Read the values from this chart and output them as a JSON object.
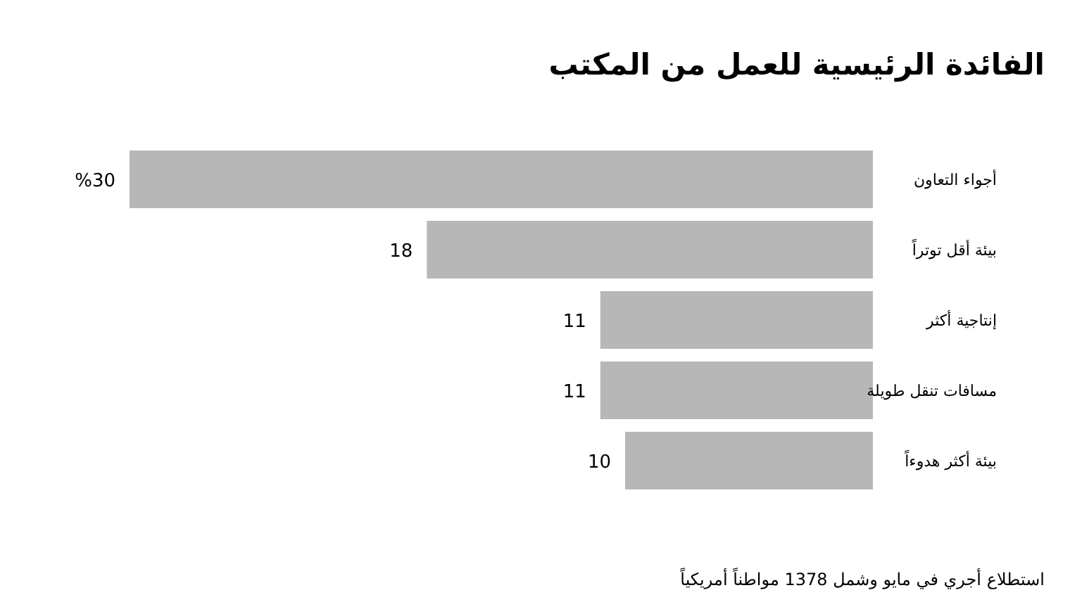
{
  "chart_data": {
    "type": "bar",
    "orientation": "horizontal",
    "title": "الفائدة الرئيسية للعمل من المكتب",
    "categories": [
      "أجواء التعاون",
      "بيئة أقل توتراً",
      "إنتاجية أكثر",
      "مسافات تنقل طويلة",
      "بيئة أكثر هدوءاً"
    ],
    "values": [
      30,
      18,
      11,
      11,
      10
    ],
    "value_labels": [
      "%30",
      "18",
      "11",
      "11",
      "10"
    ],
    "color": "#b7b7b7",
    "annotations": [
      "استطلاع أجري في مايو وشمل 1378 مواطناً أمريكياً"
    ]
  }
}
